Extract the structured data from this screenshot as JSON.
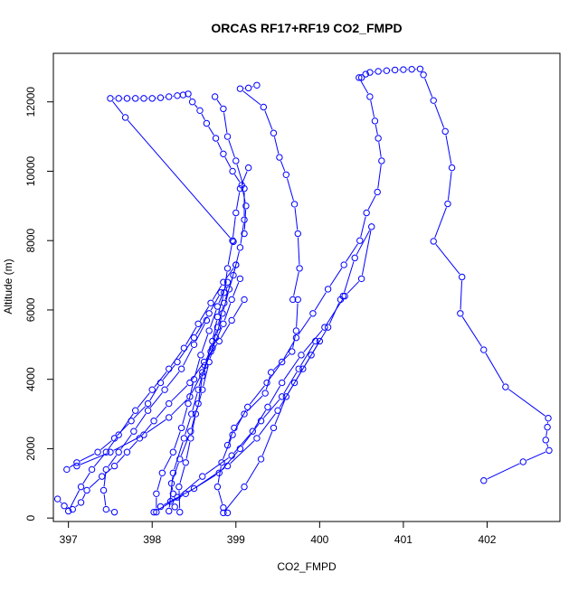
{
  "chart_data": {
    "type": "line",
    "title": "ORCAS RF17+RF19 CO2_FMPD",
    "xlabel": "CO2_FMPD",
    "ylabel": "Altitude (m)",
    "xlim": [
      396.82,
      402.87
    ],
    "ylim": [
      -100,
      13400
    ],
    "xticks": [
      397,
      398,
      399,
      400,
      401,
      402
    ],
    "xtick_labels": [
      "397",
      "398",
      "399",
      "400",
      "401",
      "402"
    ],
    "yticks": [
      0,
      2000,
      4000,
      6000,
      8000,
      10000,
      12000
    ],
    "ytick_labels": [
      "0",
      "2000",
      "4000",
      "6000",
      "8000",
      "10000",
      "12000"
    ],
    "grid": false,
    "legend": "none",
    "style": {
      "color": "#0000ff",
      "marker": "open-circle",
      "line": "solid with gaps around markers"
    },
    "series": [
      {
        "values": [
          {
            "x": 398.27,
            "y": 320
          },
          {
            "x": 398.22,
            "y": 480
          },
          {
            "x": 398.25,
            "y": 700
          },
          {
            "x": 398.23,
            "y": 1000
          },
          {
            "x": 398.33,
            "y": 1700
          },
          {
            "x": 398.46,
            "y": 2500
          },
          {
            "x": 398.55,
            "y": 3300
          },
          {
            "x": 398.6,
            "y": 4100
          },
          {
            "x": 398.7,
            "y": 4800
          },
          {
            "x": 398.78,
            "y": 5500
          },
          {
            "x": 398.86,
            "y": 6200
          },
          {
            "x": 398.97,
            "y": 7000
          },
          {
            "x": 399.05,
            "y": 7800
          },
          {
            "x": 399.1,
            "y": 8600
          },
          {
            "x": 399.1,
            "y": 9500
          },
          {
            "x": 399.0,
            "y": 10300
          },
          {
            "x": 398.9,
            "y": 11000
          },
          {
            "x": 398.85,
            "y": 11800
          },
          {
            "x": 398.75,
            "y": 12150
          }
        ]
      },
      {
        "values": [
          {
            "x": 398.97,
            "y": 7970
          },
          {
            "x": 398.96,
            "y": 8000
          },
          {
            "x": 397.68,
            "y": 11550
          },
          {
            "x": 397.5,
            "y": 12100
          },
          {
            "x": 397.6,
            "y": 12100
          },
          {
            "x": 397.7,
            "y": 12100
          },
          {
            "x": 397.8,
            "y": 12100
          },
          {
            "x": 397.9,
            "y": 12100
          },
          {
            "x": 398.0,
            "y": 12100
          },
          {
            "x": 398.1,
            "y": 12120
          },
          {
            "x": 398.2,
            "y": 12150
          },
          {
            "x": 398.3,
            "y": 12180
          },
          {
            "x": 398.37,
            "y": 12200
          },
          {
            "x": 398.43,
            "y": 12230
          },
          {
            "x": 398.48,
            "y": 12000
          },
          {
            "x": 398.57,
            "y": 11750
          },
          {
            "x": 398.65,
            "y": 11380
          },
          {
            "x": 398.76,
            "y": 10950
          },
          {
            "x": 398.85,
            "y": 10500
          },
          {
            "x": 398.96,
            "y": 10000
          },
          {
            "x": 399.07,
            "y": 9600
          },
          {
            "x": 399.12,
            "y": 9000
          },
          {
            "x": 399.1,
            "y": 8200
          }
        ]
      },
      {
        "values": [
          {
            "x": 400.5,
            "y": 12700
          },
          {
            "x": 400.55,
            "y": 12800
          },
          {
            "x": 400.6,
            "y": 12850
          },
          {
            "x": 400.7,
            "y": 12880
          },
          {
            "x": 400.8,
            "y": 12900
          },
          {
            "x": 400.9,
            "y": 12920
          },
          {
            "x": 401.0,
            "y": 12930
          },
          {
            "x": 401.1,
            "y": 12940
          },
          {
            "x": 401.2,
            "y": 12950
          },
          {
            "x": 401.24,
            "y": 12780
          },
          {
            "x": 401.36,
            "y": 12040
          },
          {
            "x": 401.5,
            "y": 11150
          },
          {
            "x": 401.58,
            "y": 10100
          },
          {
            "x": 401.53,
            "y": 9060
          },
          {
            "x": 401.36,
            "y": 7980
          },
          {
            "x": 401.7,
            "y": 6950
          },
          {
            "x": 401.68,
            "y": 5900
          },
          {
            "x": 401.96,
            "y": 4850
          },
          {
            "x": 402.22,
            "y": 3780
          },
          {
            "x": 402.73,
            "y": 2880
          },
          {
            "x": 402.72,
            "y": 2620
          },
          {
            "x": 402.7,
            "y": 2250
          },
          {
            "x": 402.74,
            "y": 1950
          },
          {
            "x": 402.43,
            "y": 1620
          },
          {
            "x": 401.96,
            "y": 1080
          }
        ]
      },
      {
        "values": [
          {
            "x": 400.47,
            "y": 12700
          },
          {
            "x": 400.6,
            "y": 12150
          },
          {
            "x": 400.66,
            "y": 11450
          },
          {
            "x": 400.7,
            "y": 10950
          },
          {
            "x": 400.74,
            "y": 10300
          },
          {
            "x": 400.69,
            "y": 9400
          },
          {
            "x": 400.56,
            "y": 8800
          },
          {
            "x": 400.48,
            "y": 8000
          },
          {
            "x": 400.29,
            "y": 7300
          },
          {
            "x": 400.1,
            "y": 6600
          },
          {
            "x": 399.92,
            "y": 5900
          },
          {
            "x": 399.72,
            "y": 5200
          },
          {
            "x": 399.55,
            "y": 4500
          },
          {
            "x": 399.37,
            "y": 3900
          },
          {
            "x": 399.14,
            "y": 3200
          },
          {
            "x": 398.96,
            "y": 2400
          },
          {
            "x": 398.83,
            "y": 1600
          },
          {
            "x": 398.78,
            "y": 900
          },
          {
            "x": 398.85,
            "y": 300
          },
          {
            "x": 398.9,
            "y": 150
          }
        ]
      },
      {
        "values": [
          {
            "x": 400.28,
            "y": 6400
          },
          {
            "x": 400.42,
            "y": 7500
          },
          {
            "x": 400.62,
            "y": 8400
          },
          {
            "x": 400.5,
            "y": 6900
          },
          {
            "x": 400.3,
            "y": 6400
          },
          {
            "x": 400.06,
            "y": 5500
          },
          {
            "x": 399.78,
            "y": 4700
          },
          {
            "x": 399.55,
            "y": 3900
          },
          {
            "x": 399.38,
            "y": 3200
          },
          {
            "x": 399.2,
            "y": 2500
          },
          {
            "x": 398.95,
            "y": 1800
          },
          {
            "x": 398.6,
            "y": 1200
          },
          {
            "x": 398.3,
            "y": 600
          }
        ]
      },
      {
        "values": [
          {
            "x": 399.25,
            "y": 12480
          },
          {
            "x": 399.15,
            "y": 12400
          },
          {
            "x": 399.05,
            "y": 12380
          },
          {
            "x": 399.33,
            "y": 11850
          },
          {
            "x": 399.45,
            "y": 11100
          },
          {
            "x": 399.52,
            "y": 10400
          },
          {
            "x": 399.6,
            "y": 9900
          },
          {
            "x": 399.7,
            "y": 9050
          },
          {
            "x": 399.74,
            "y": 8200
          },
          {
            "x": 399.76,
            "y": 7200
          },
          {
            "x": 399.68,
            "y": 6300
          },
          {
            "x": 399.74,
            "y": 6300
          },
          {
            "x": 399.72,
            "y": 5400
          },
          {
            "x": 399.67,
            "y": 4800
          },
          {
            "x": 399.42,
            "y": 4200
          },
          {
            "x": 399.35,
            "y": 3600
          },
          {
            "x": 399.1,
            "y": 3000
          },
          {
            "x": 398.98,
            "y": 2600
          },
          {
            "x": 398.9,
            "y": 2100
          }
        ]
      },
      {
        "values": [
          {
            "x": 399.15,
            "y": 10100
          },
          {
            "x": 399.05,
            "y": 9500
          },
          {
            "x": 399.0,
            "y": 8800
          },
          {
            "x": 398.96,
            "y": 8000
          },
          {
            "x": 398.9,
            "y": 7200
          },
          {
            "x": 398.86,
            "y": 6500
          },
          {
            "x": 398.78,
            "y": 5800
          },
          {
            "x": 398.72,
            "y": 5100
          },
          {
            "x": 398.63,
            "y": 4400
          },
          {
            "x": 398.55,
            "y": 3700
          },
          {
            "x": 398.47,
            "y": 3000
          },
          {
            "x": 398.38,
            "y": 2300
          },
          {
            "x": 398.25,
            "y": 1300
          },
          {
            "x": 398.2,
            "y": 200
          }
        ]
      },
      {
        "values": [
          {
            "x": 397.0,
            "y": 200
          },
          {
            "x": 397.15,
            "y": 900
          },
          {
            "x": 397.28,
            "y": 1400
          },
          {
            "x": 397.45,
            "y": 1900
          },
          {
            "x": 397.6,
            "y": 2400
          },
          {
            "x": 397.8,
            "y": 3100
          },
          {
            "x": 398.0,
            "y": 3700
          },
          {
            "x": 398.2,
            "y": 4300
          },
          {
            "x": 398.38,
            "y": 4900
          },
          {
            "x": 398.55,
            "y": 5600
          },
          {
            "x": 398.7,
            "y": 6200
          },
          {
            "x": 398.85,
            "y": 6800
          },
          {
            "x": 399.0,
            "y": 7300
          }
        ]
      },
      {
        "values": [
          {
            "x": 397.1,
            "y": 1500
          },
          {
            "x": 397.5,
            "y": 1900
          },
          {
            "x": 397.9,
            "y": 2400
          },
          {
            "x": 398.2,
            "y": 2900
          },
          {
            "x": 398.45,
            "y": 3500
          },
          {
            "x": 398.6,
            "y": 4200
          },
          {
            "x": 398.72,
            "y": 4900
          },
          {
            "x": 398.85,
            "y": 5600
          },
          {
            "x": 398.95,
            "y": 6300
          },
          {
            "x": 399.05,
            "y": 6900
          }
        ]
      },
      {
        "values": [
          {
            "x": 396.98,
            "y": 1400
          },
          {
            "x": 397.1,
            "y": 1600
          },
          {
            "x": 397.35,
            "y": 1900
          },
          {
            "x": 397.55,
            "y": 2300
          },
          {
            "x": 397.75,
            "y": 2800
          },
          {
            "x": 397.95,
            "y": 3300
          },
          {
            "x": 398.1,
            "y": 3900
          },
          {
            "x": 398.3,
            "y": 4500
          },
          {
            "x": 398.5,
            "y": 5200
          },
          {
            "x": 398.68,
            "y": 5900
          },
          {
            "x": 398.82,
            "y": 6500
          }
        ]
      },
      {
        "values": [
          {
            "x": 396.87,
            "y": 550
          },
          {
            "x": 396.95,
            "y": 350
          },
          {
            "x": 397.05,
            "y": 250
          },
          {
            "x": 397.15,
            "y": 450
          },
          {
            "x": 397.22,
            "y": 800
          },
          {
            "x": 397.4,
            "y": 1200
          },
          {
            "x": 397.55,
            "y": 1500
          },
          {
            "x": 397.7,
            "y": 1900
          },
          {
            "x": 397.85,
            "y": 2300
          },
          {
            "x": 398.02,
            "y": 2800
          },
          {
            "x": 398.2,
            "y": 3300
          },
          {
            "x": 398.45,
            "y": 3900
          },
          {
            "x": 398.62,
            "y": 4500
          },
          {
            "x": 398.8,
            "y": 5100
          },
          {
            "x": 398.95,
            "y": 5700
          },
          {
            "x": 399.1,
            "y": 6300
          }
        ]
      },
      {
        "values": [
          {
            "x": 397.55,
            "y": 170
          },
          {
            "x": 397.45,
            "y": 250
          },
          {
            "x": 397.42,
            "y": 800
          },
          {
            "x": 397.45,
            "y": 1400
          },
          {
            "x": 397.6,
            "y": 1900
          },
          {
            "x": 397.78,
            "y": 2500
          },
          {
            "x": 397.95,
            "y": 3100
          },
          {
            "x": 398.15,
            "y": 3700
          },
          {
            "x": 398.35,
            "y": 4300
          },
          {
            "x": 398.5,
            "y": 5000
          },
          {
            "x": 398.65,
            "y": 5700
          }
        ]
      },
      {
        "values": [
          {
            "x": 398.05,
            "y": 170
          },
          {
            "x": 398.05,
            "y": 700
          },
          {
            "x": 398.12,
            "y": 1300
          },
          {
            "x": 398.25,
            "y": 1900
          },
          {
            "x": 398.35,
            "y": 2600
          },
          {
            "x": 398.43,
            "y": 3300
          },
          {
            "x": 398.5,
            "y": 4000
          },
          {
            "x": 398.58,
            "y": 4700
          },
          {
            "x": 398.68,
            "y": 5400
          },
          {
            "x": 398.78,
            "y": 6100
          },
          {
            "x": 398.9,
            "y": 6800
          }
        ]
      },
      {
        "values": [
          {
            "x": 398.33,
            "y": 170
          },
          {
            "x": 398.32,
            "y": 900
          },
          {
            "x": 398.4,
            "y": 1600
          },
          {
            "x": 398.46,
            "y": 2300
          },
          {
            "x": 398.52,
            "y": 3000
          },
          {
            "x": 398.6,
            "y": 3700
          },
          {
            "x": 398.68,
            "y": 4500
          },
          {
            "x": 398.76,
            "y": 5200
          },
          {
            "x": 398.84,
            "y": 5900
          },
          {
            "x": 398.92,
            "y": 6600
          },
          {
            "x": 399.0,
            "y": 7300
          }
        ]
      },
      {
        "values": [
          {
            "x": 398.1,
            "y": 330
          },
          {
            "x": 398.5,
            "y": 850
          },
          {
            "x": 398.9,
            "y": 1500
          },
          {
            "x": 399.25,
            "y": 2300
          },
          {
            "x": 399.5,
            "y": 3100
          },
          {
            "x": 399.7,
            "y": 3900
          },
          {
            "x": 399.9,
            "y": 4700
          },
          {
            "x": 400.1,
            "y": 5500
          },
          {
            "x": 400.25,
            "y": 6300
          }
        ]
      },
      {
        "values": [
          {
            "x": 398.02,
            "y": 170
          },
          {
            "x": 398.4,
            "y": 700
          },
          {
            "x": 398.8,
            "y": 1300
          },
          {
            "x": 399.05,
            "y": 2000
          },
          {
            "x": 399.3,
            "y": 2800
          },
          {
            "x": 399.55,
            "y": 3500
          },
          {
            "x": 399.75,
            "y": 4300
          },
          {
            "x": 399.95,
            "y": 5100
          }
        ]
      },
      {
        "values": [
          {
            "x": 398.85,
            "y": 150
          },
          {
            "x": 399.1,
            "y": 900
          },
          {
            "x": 399.3,
            "y": 1700
          },
          {
            "x": 399.45,
            "y": 2600
          },
          {
            "x": 399.6,
            "y": 3500
          },
          {
            "x": 399.8,
            "y": 4300
          },
          {
            "x": 400.0,
            "y": 5100
          }
        ]
      }
    ]
  }
}
